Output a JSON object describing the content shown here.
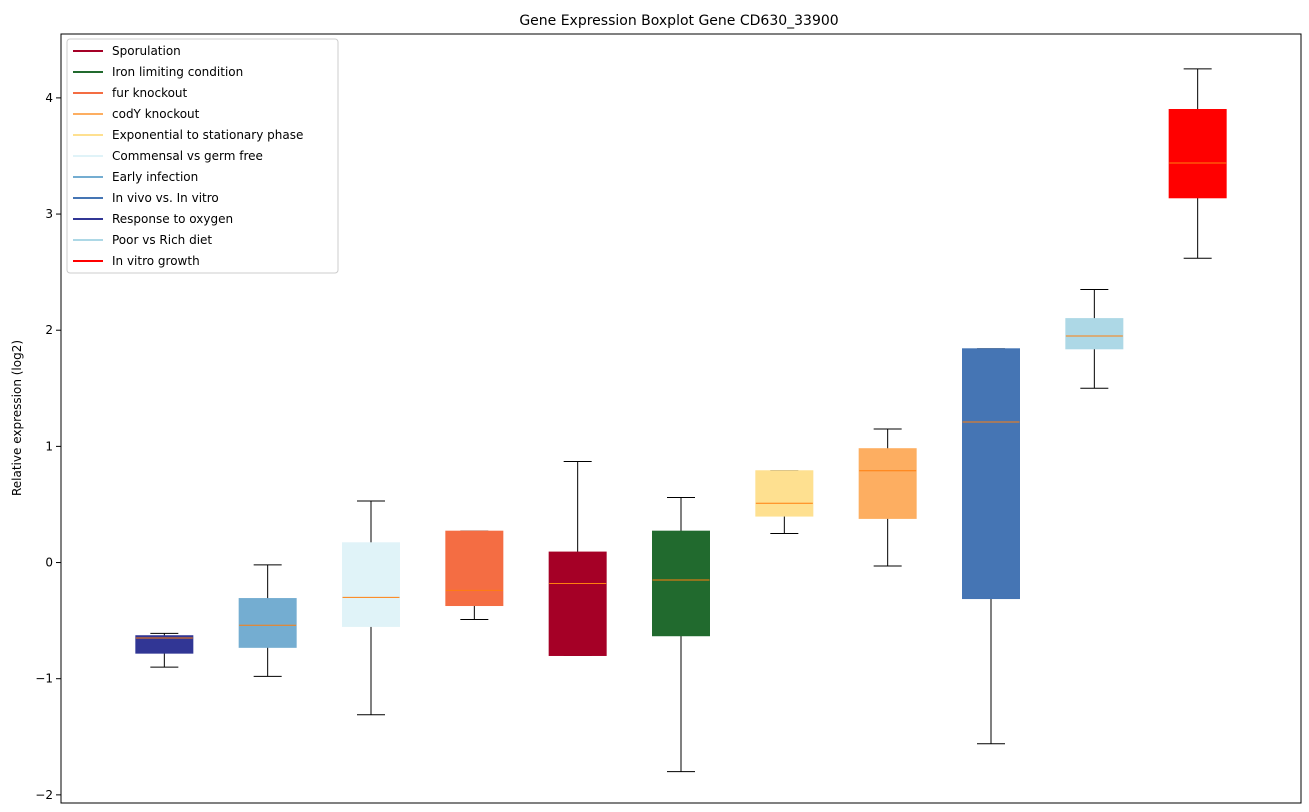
{
  "chart_data": {
    "type": "boxplot",
    "title": "Gene Expression Boxplot Gene CD630_33900",
    "xlabel": "",
    "ylabel": "Relative expression (log2)",
    "ylim": [
      -2.07,
      4.55
    ],
    "yticks": [
      -2,
      -1,
      0,
      1,
      2,
      3,
      4
    ],
    "ytick_labels": [
      "−2",
      "−1",
      "0",
      "1",
      "2",
      "3",
      "4"
    ],
    "grid": false,
    "legend_position": "top-left",
    "median_color": "#ff7f0e",
    "whisker_color": "#000000",
    "legend": [
      {
        "label": "Sporulation",
        "color": "#a50026"
      },
      {
        "label": "Iron limiting condition",
        "color": "#216a2e"
      },
      {
        "label": "fur knockout",
        "color": "#f46d43"
      },
      {
        "label": "codY knockout",
        "color": "#fdae61"
      },
      {
        "label": "Exponential to stationary phase",
        "color": "#fee090"
      },
      {
        "label": "Commensal vs germ free",
        "color": "#e0f3f8"
      },
      {
        "label": "Early infection",
        "color": "#74add1"
      },
      {
        "label": "In vivo vs. In vitro",
        "color": "#4575b4"
      },
      {
        "label": "Response to oxygen",
        "color": "#313695"
      },
      {
        "label": "Poor vs Rich diet",
        "color": "#add8e6"
      },
      {
        "label": "In vitro growth",
        "color": "#ff0000"
      }
    ],
    "boxes": [
      {
        "group": "Response to oxygen",
        "color": "#313695",
        "whislo": -0.9,
        "q1": -0.78,
        "med": -0.65,
        "q3": -0.63,
        "whishi": -0.61
      },
      {
        "group": "Early infection",
        "color": "#74add1",
        "whislo": -0.98,
        "q1": -0.73,
        "med": -0.54,
        "q3": -0.31,
        "whishi": -0.02
      },
      {
        "group": "Commensal vs germ free",
        "color": "#e0f3f8",
        "whislo": -1.31,
        "q1": -0.55,
        "med": -0.3,
        "q3": 0.17,
        "whishi": 0.53
      },
      {
        "group": "fur knockout",
        "color": "#f46d43",
        "whislo": -0.49,
        "q1": -0.37,
        "med": -0.24,
        "q3": 0.27,
        "whishi": 0.27
      },
      {
        "group": "Sporulation",
        "color": "#a50026",
        "whislo": -0.8,
        "q1": -0.8,
        "med": -0.18,
        "q3": 0.09,
        "whishi": 0.87
      },
      {
        "group": "Iron limiting condition",
        "color": "#216a2e",
        "whislo": -1.8,
        "q1": -0.63,
        "med": -0.15,
        "q3": 0.27,
        "whishi": 0.56
      },
      {
        "group": "Exponential to stationary phase",
        "color": "#fee090",
        "whislo": 0.25,
        "q1": 0.4,
        "med": 0.51,
        "q3": 0.79,
        "whishi": 0.79
      },
      {
        "group": "codY knockout",
        "color": "#fdae61",
        "whislo": -0.03,
        "q1": 0.38,
        "med": 0.79,
        "q3": 0.98,
        "whishi": 1.15
      },
      {
        "group": "In vivo vs. In vitro",
        "color": "#4575b4",
        "whislo": -1.56,
        "q1": -0.31,
        "med": 1.21,
        "q3": 1.84,
        "whishi": 1.84
      },
      {
        "group": "Poor vs Rich diet",
        "color": "#add8e6",
        "whislo": 1.5,
        "q1": 1.84,
        "med": 1.95,
        "q3": 2.1,
        "whishi": 2.35
      },
      {
        "group": "In vitro growth",
        "color": "#ff0000",
        "whislo": 2.62,
        "q1": 3.14,
        "med": 3.44,
        "q3": 3.9,
        "whishi": 4.25
      }
    ]
  }
}
